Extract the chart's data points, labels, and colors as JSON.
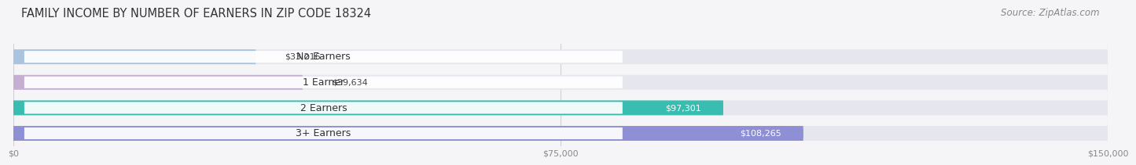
{
  "title": "FAMILY INCOME BY NUMBER OF EARNERS IN ZIP CODE 18324",
  "source": "Source: ZipAtlas.com",
  "categories": [
    "No Earners",
    "1 Earner",
    "2 Earners",
    "3+ Earners"
  ],
  "values": [
    33216,
    39634,
    97301,
    108265
  ],
  "bar_colors": [
    "#aac4df",
    "#c4afd3",
    "#38bdb0",
    "#8e8fd4"
  ],
  "bar_bg_color": "#e6e6ee",
  "value_label_bg_colors": [
    "#aac4df",
    "#c4afd3",
    "#38bdb0",
    "#8e8fd4"
  ],
  "label_colors": [
    "#333333",
    "#333333",
    "#ffffff",
    "#ffffff"
  ],
  "xlim": [
    0,
    150000
  ],
  "xticks": [
    0,
    75000,
    150000
  ],
  "xtick_labels": [
    "$0",
    "$75,000",
    "$150,000"
  ],
  "background_color": "#f5f5f8",
  "title_fontsize": 10.5,
  "source_fontsize": 8.5,
  "bar_label_fontsize": 8,
  "category_fontsize": 9,
  "bar_height": 0.58,
  "value_labels": [
    "$33,216",
    "$39,634",
    "$97,301",
    "$108,265"
  ],
  "value_inside": [
    false,
    false,
    true,
    true
  ]
}
